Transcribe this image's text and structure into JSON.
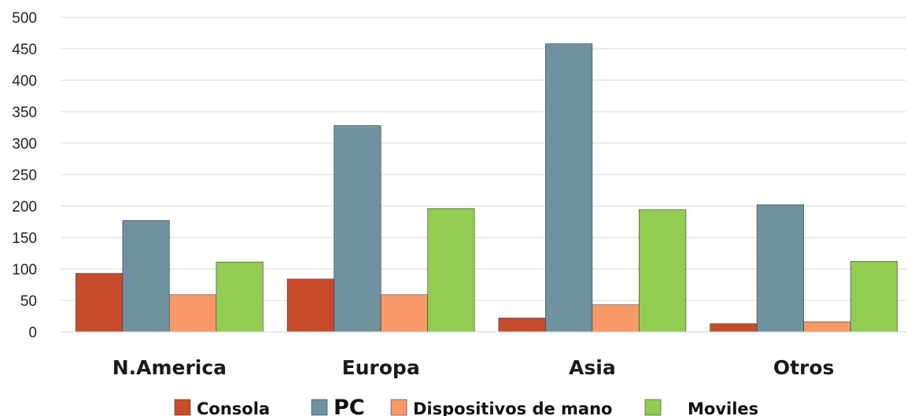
{
  "chart_data": {
    "type": "bar",
    "title": "",
    "xlabel": "",
    "ylabel": "",
    "categories": [
      "N.America",
      "Europa",
      "Asia",
      "Otros"
    ],
    "series": [
      {
        "name": "Consola",
        "color": "#c84b2b",
        "values": [
          93,
          84,
          22,
          13
        ]
      },
      {
        "name": "PC",
        "color": "#6e939e",
        "values": [
          177,
          328,
          458,
          202
        ]
      },
      {
        "name": "Dispositivos de mano",
        "color": "#f79a67",
        "values": [
          59,
          59,
          43,
          16
        ]
      },
      {
        "name": "Moviles",
        "color": "#92cd52",
        "values": [
          111,
          196,
          194,
          112
        ]
      }
    ],
    "ylim": [
      0,
      500
    ],
    "yticks": [
      0,
      50,
      100,
      150,
      200,
      250,
      300,
      350,
      400,
      450,
      500
    ],
    "grid": true,
    "legend_position": "bottom"
  }
}
